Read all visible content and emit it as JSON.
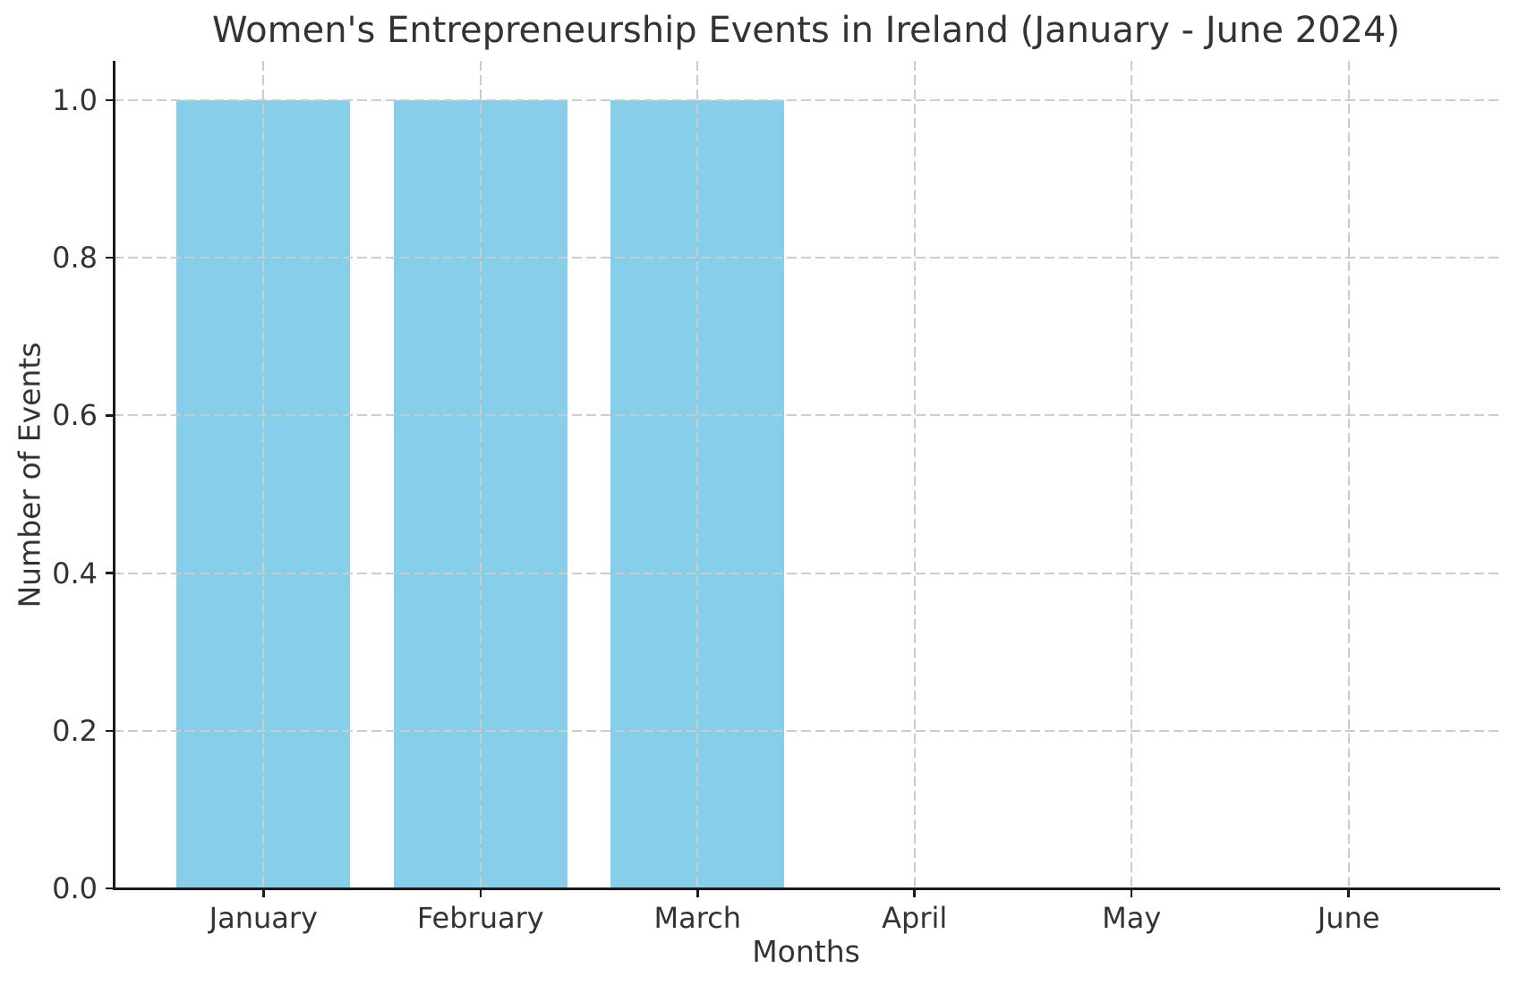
{
  "chart_data": {
    "type": "bar",
    "title": "Women's Entrepreneurship Events in Ireland (January - June 2024)",
    "xlabel": "Months",
    "ylabel": "Number of Events",
    "categories": [
      "January",
      "February",
      "March",
      "April",
      "May",
      "June"
    ],
    "values": [
      1,
      1,
      1,
      0,
      0,
      0
    ],
    "ylim": [
      0,
      1.05
    ],
    "yticks": [
      0.0,
      0.2,
      0.4,
      0.6,
      0.8,
      1.0
    ],
    "ytick_labels": [
      "0.0",
      "0.2",
      "0.4",
      "0.6",
      "0.8",
      "1.0"
    ],
    "bar_color": "#87CEEB",
    "bar_width_fraction": 0.8,
    "grid": {
      "visible": true,
      "axes": "both",
      "style": "dashed",
      "color": "#cccccc",
      "above_bars": true
    },
    "legend": "none",
    "spine_color": "#1a1a1a",
    "text_color": "#333333",
    "spines_visible": [
      "left",
      "bottom"
    ]
  }
}
